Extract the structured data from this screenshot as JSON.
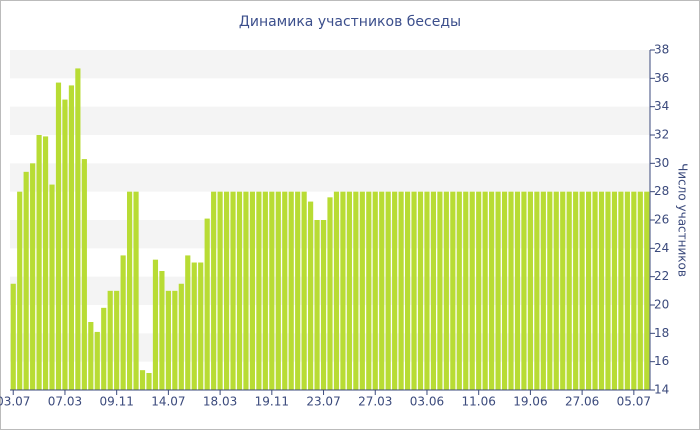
{
  "chart_data": {
    "type": "bar",
    "title": "Динамика участников беседы",
    "y_label": "Число участников",
    "categories": [
      "03.07",
      null,
      null,
      null,
      null,
      null,
      null,
      null,
      "07.03",
      null,
      null,
      null,
      null,
      null,
      null,
      null,
      "09.11",
      null,
      null,
      null,
      null,
      null,
      null,
      null,
      "14.07",
      null,
      null,
      null,
      null,
      null,
      null,
      null,
      "18.03",
      null,
      null,
      null,
      null,
      null,
      null,
      null,
      "19.11",
      null,
      null,
      null,
      null,
      null,
      null,
      null,
      "23.07",
      null,
      null,
      null,
      null,
      null,
      null,
      null,
      "27.03",
      null,
      null,
      null,
      null,
      null,
      null,
      null,
      "03.06",
      null,
      null,
      null,
      null,
      null,
      null,
      null,
      "11.06",
      null,
      null,
      null,
      null,
      null,
      null,
      null,
      "19.06",
      null,
      null,
      null,
      null,
      null,
      null,
      null,
      "27.06",
      null,
      null,
      null,
      null,
      null,
      null,
      null,
      "05.07",
      null,
      null
    ],
    "values": [
      21.5,
      28,
      29.4,
      30,
      32,
      31.9,
      28.5,
      35.7,
      34.5,
      35.5,
      36.7,
      30.3,
      18.8,
      18.1,
      19.8,
      21,
      21,
      23.5,
      28,
      28,
      15.4,
      15.2,
      23.2,
      22.4,
      21,
      21,
      21.5,
      23.5,
      23,
      23,
      26.1,
      28,
      28,
      28,
      28,
      28,
      28,
      28,
      28,
      28,
      28,
      28,
      28,
      28,
      28,
      28,
      27.3,
      26,
      26,
      27.6,
      28,
      28,
      28,
      28,
      28,
      28,
      28,
      28,
      28,
      28,
      28,
      28,
      28,
      28,
      28,
      28,
      28,
      28,
      28,
      28,
      28,
      28,
      28,
      28,
      28,
      28,
      28,
      28,
      28,
      28,
      28,
      28,
      28,
      28,
      28,
      28,
      28,
      28,
      28,
      28,
      28,
      28,
      28,
      28,
      28,
      28,
      28,
      28,
      28
    ],
    "color": "#b8dc34",
    "ylim": [
      14,
      38
    ],
    "yticks": [
      14,
      16,
      18,
      20,
      22,
      24,
      26,
      28,
      30,
      32,
      34,
      36,
      38
    ],
    "grid_bands": true
  }
}
